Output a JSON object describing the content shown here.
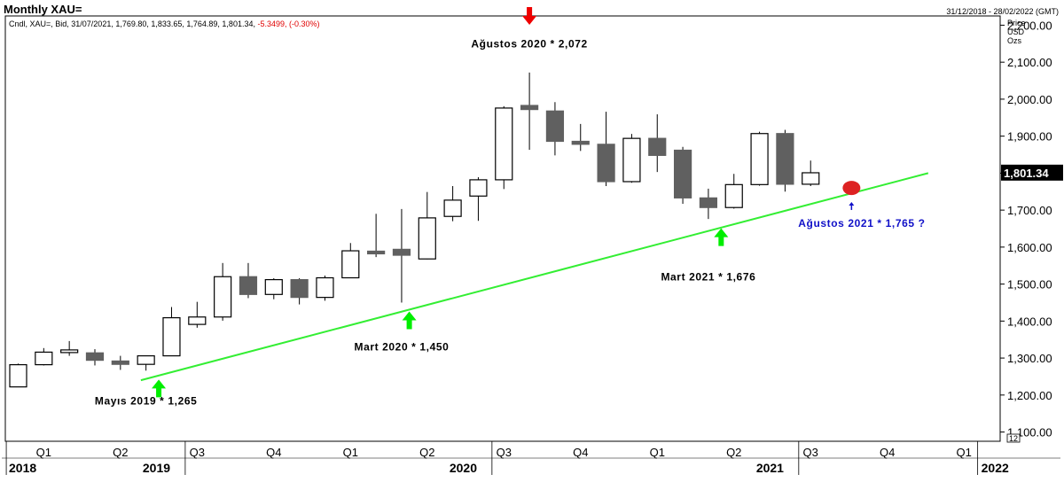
{
  "header": {
    "title": "Monthly XAU=",
    "range": "31/12/2018 - 28/02/2022 (GMT)",
    "info_prefix": "Cndl, XAU=, Bid, 31/07/2021, 1,769.80, 1,833.65, 1,764.89, 1,801.34,",
    "info_change": "-5.3499, (-0.30%)"
  },
  "axis_header": {
    "line1": "Price",
    "line2": "USD",
    "line3": "Ozs"
  },
  "scale_box": "12",
  "colors": {
    "up": "#ffffff",
    "down": "#606060",
    "trend": "#33ee33",
    "arrow_up": "#00ee00",
    "arrow_down": "#ee0000",
    "blue": "#1010c8",
    "dot": "#dd2222"
  },
  "chart_data": {
    "type": "candlestick",
    "y_ticks": [
      1100,
      1200,
      1300,
      1400,
      1500,
      1600,
      1700,
      1800,
      1900,
      2000,
      2100,
      2200
    ],
    "y_tick_labels": [
      "1,100.00",
      "1,200.00",
      "1,300.00",
      "1,400.00",
      "1,500.00",
      "1,600.00",
      "1,700.00",
      "1,800.00",
      "1,900.00",
      "2,000.00",
      "2,100.00",
      "2,200.00"
    ],
    "ylim": [
      1075,
      2225
    ],
    "last_price": 1801.34,
    "last_price_label": "1,801.34",
    "candles": [
      {
        "open": 1222,
        "high": 1285,
        "low": 1222,
        "close": 1282
      },
      {
        "open": 1282,
        "high": 1327,
        "low": 1280,
        "close": 1316
      },
      {
        "open": 1316,
        "high": 1346,
        "low": 1306,
        "close": 1322
      },
      {
        "open": 1314,
        "high": 1324,
        "low": 1280,
        "close": 1294
      },
      {
        "open": 1292,
        "high": 1306,
        "low": 1268,
        "close": 1283
      },
      {
        "open": 1283,
        "high": 1303,
        "low": 1266,
        "close": 1306
      },
      {
        "open": 1306,
        "high": 1438,
        "low": 1306,
        "close": 1409
      },
      {
        "open": 1391,
        "high": 1452,
        "low": 1382,
        "close": 1411
      },
      {
        "open": 1411,
        "high": 1557,
        "low": 1401,
        "close": 1520
      },
      {
        "open": 1520,
        "high": 1557,
        "low": 1462,
        "close": 1472
      },
      {
        "open": 1472,
        "high": 1516,
        "low": 1459,
        "close": 1512
      },
      {
        "open": 1512,
        "high": 1516,
        "low": 1445,
        "close": 1464
      },
      {
        "open": 1464,
        "high": 1523,
        "low": 1455,
        "close": 1517
      },
      {
        "open": 1517,
        "high": 1611,
        "low": 1517,
        "close": 1590
      },
      {
        "open": 1589,
        "high": 1690,
        "low": 1573,
        "close": 1587
      },
      {
        "open": 1594,
        "high": 1703,
        "low": 1450,
        "close": 1578
      },
      {
        "open": 1568,
        "high": 1749,
        "low": 1567,
        "close": 1679
      },
      {
        "open": 1683,
        "high": 1765,
        "low": 1670,
        "close": 1727
      },
      {
        "open": 1738,
        "high": 1789,
        "low": 1671,
        "close": 1782
      },
      {
        "open": 1782,
        "high": 1981,
        "low": 1757,
        "close": 1976
      },
      {
        "open": 1983,
        "high": 2072,
        "low": 1863,
        "close": 1972
      },
      {
        "open": 1968,
        "high": 1992,
        "low": 1848,
        "close": 1886
      },
      {
        "open": 1886,
        "high": 1933,
        "low": 1860,
        "close": 1878
      },
      {
        "open": 1878,
        "high": 1966,
        "low": 1765,
        "close": 1777
      },
      {
        "open": 1777,
        "high": 1906,
        "low": 1774,
        "close": 1894
      },
      {
        "open": 1894,
        "high": 1959,
        "low": 1803,
        "close": 1848
      },
      {
        "open": 1862,
        "high": 1871,
        "low": 1717,
        "close": 1733
      },
      {
        "open": 1733,
        "high": 1758,
        "low": 1676,
        "close": 1707
      },
      {
        "open": 1707,
        "high": 1798,
        "low": 1704,
        "close": 1769
      },
      {
        "open": 1769,
        "high": 1912,
        "low": 1766,
        "close": 1907
      },
      {
        "open": 1907,
        "high": 1917,
        "low": 1750,
        "close": 1770
      },
      {
        "open": 1770,
        "high": 1834,
        "low": 1765,
        "close": 1801
      }
    ],
    "trendline": {
      "from": {
        "index": 4.8,
        "value": 1240
      },
      "to": {
        "index": 35.6,
        "value": 1800
      }
    },
    "annotations": [
      {
        "text": "Ağustos 2020 * 2,072",
        "index": 20,
        "value": 2140,
        "color": "#000000"
      },
      {
        "text": "Mayıs 2019 * 1,265",
        "index": 5,
        "value": 1175,
        "color": "#000000"
      },
      {
        "text": "Mart 2020 * 1,450",
        "index": 15,
        "value": 1320,
        "color": "#000000"
      },
      {
        "text": "Mart 2021 * 1,676",
        "index": 27,
        "value": 1510,
        "color": "#000000"
      },
      {
        "text": "Ağustos 2021 * 1,765 ?",
        "index": 33,
        "value": 1655,
        "color": "#1010c8"
      }
    ],
    "arrows": [
      {
        "dir": "down",
        "index": 20,
        "value": 2225,
        "color": "#ee0000"
      },
      {
        "dir": "up",
        "index": 5.5,
        "value": 1218,
        "color": "#00ee00"
      },
      {
        "dir": "up",
        "index": 15.3,
        "value": 1402,
        "color": "#00ee00"
      },
      {
        "dir": "up",
        "index": 27.5,
        "value": 1627,
        "color": "#00ee00"
      }
    ],
    "small_arrows": [
      {
        "index": 32.6,
        "value": 1710,
        "color": "#1010c8"
      }
    ],
    "dots": [
      {
        "index": 32.6,
        "value": 1760,
        "color": "#dd2222"
      }
    ],
    "quarter_labels": [
      {
        "label": "Q1",
        "index": 1
      },
      {
        "label": "Q2",
        "index": 4
      },
      {
        "label": "Q3",
        "index": 7
      },
      {
        "label": "Q4",
        "index": 10
      },
      {
        "label": "Q1",
        "index": 13
      },
      {
        "label": "Q2",
        "index": 16
      },
      {
        "label": "Q3",
        "index": 19
      },
      {
        "label": "Q4",
        "index": 22
      },
      {
        "label": "Q1",
        "index": 25
      },
      {
        "label": "Q2",
        "index": 28
      },
      {
        "label": "Q3",
        "index": 31
      },
      {
        "label": "Q4",
        "index": 34
      },
      {
        "label": "Q1",
        "index": 37
      }
    ],
    "year_labels": [
      {
        "label": "2018",
        "index": 0
      },
      {
        "label": "2019",
        "index": 7
      },
      {
        "label": "2020",
        "index": 19
      },
      {
        "label": "2021",
        "index": 31
      },
      {
        "label": "2022",
        "index": 38
      }
    ]
  }
}
